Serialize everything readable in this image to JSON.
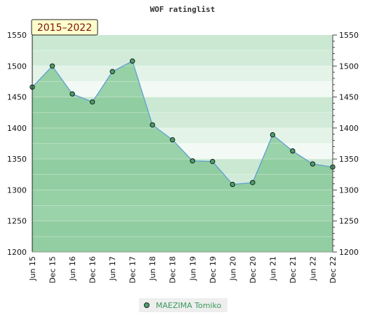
{
  "chart_data": {
    "type": "area",
    "title": "WOF ratinglist",
    "period_badge": "2015–2022",
    "xlabel": "",
    "ylabel": "",
    "ylim": [
      1200,
      1550
    ],
    "y_ticks": [
      1200,
      1250,
      1300,
      1350,
      1400,
      1450,
      1500,
      1550
    ],
    "y_axis_both_sides": true,
    "grid": true,
    "legend_position": "bottom-center",
    "categories": [
      "Jun 15",
      "Dec 15",
      "Jun 16",
      "Dec 16",
      "Jun 17",
      "Dec 17",
      "Jun 18",
      "Dec 18",
      "Jun 19",
      "Dec 19",
      "Jun 20",
      "Dec 20",
      "Jun 21",
      "Dec 21",
      "Jun 22",
      "Dec 22"
    ],
    "series": [
      {
        "name": "MAEZIMA Tomiko",
        "values": [
          1466,
          1500,
          1455,
          1442,
          1491,
          1508,
          1405,
          1381,
          1347,
          1346,
          1309,
          1312,
          1389,
          1363,
          1342,
          1337
        ],
        "line_color": "#5b9bd5",
        "marker_color": "#4aa06a"
      }
    ],
    "colors": {
      "fill": "#7cc48f",
      "band_dark": "#b5dfc0",
      "band_light": "#e4f3e8",
      "badge_bg": "#ffffcc"
    }
  }
}
